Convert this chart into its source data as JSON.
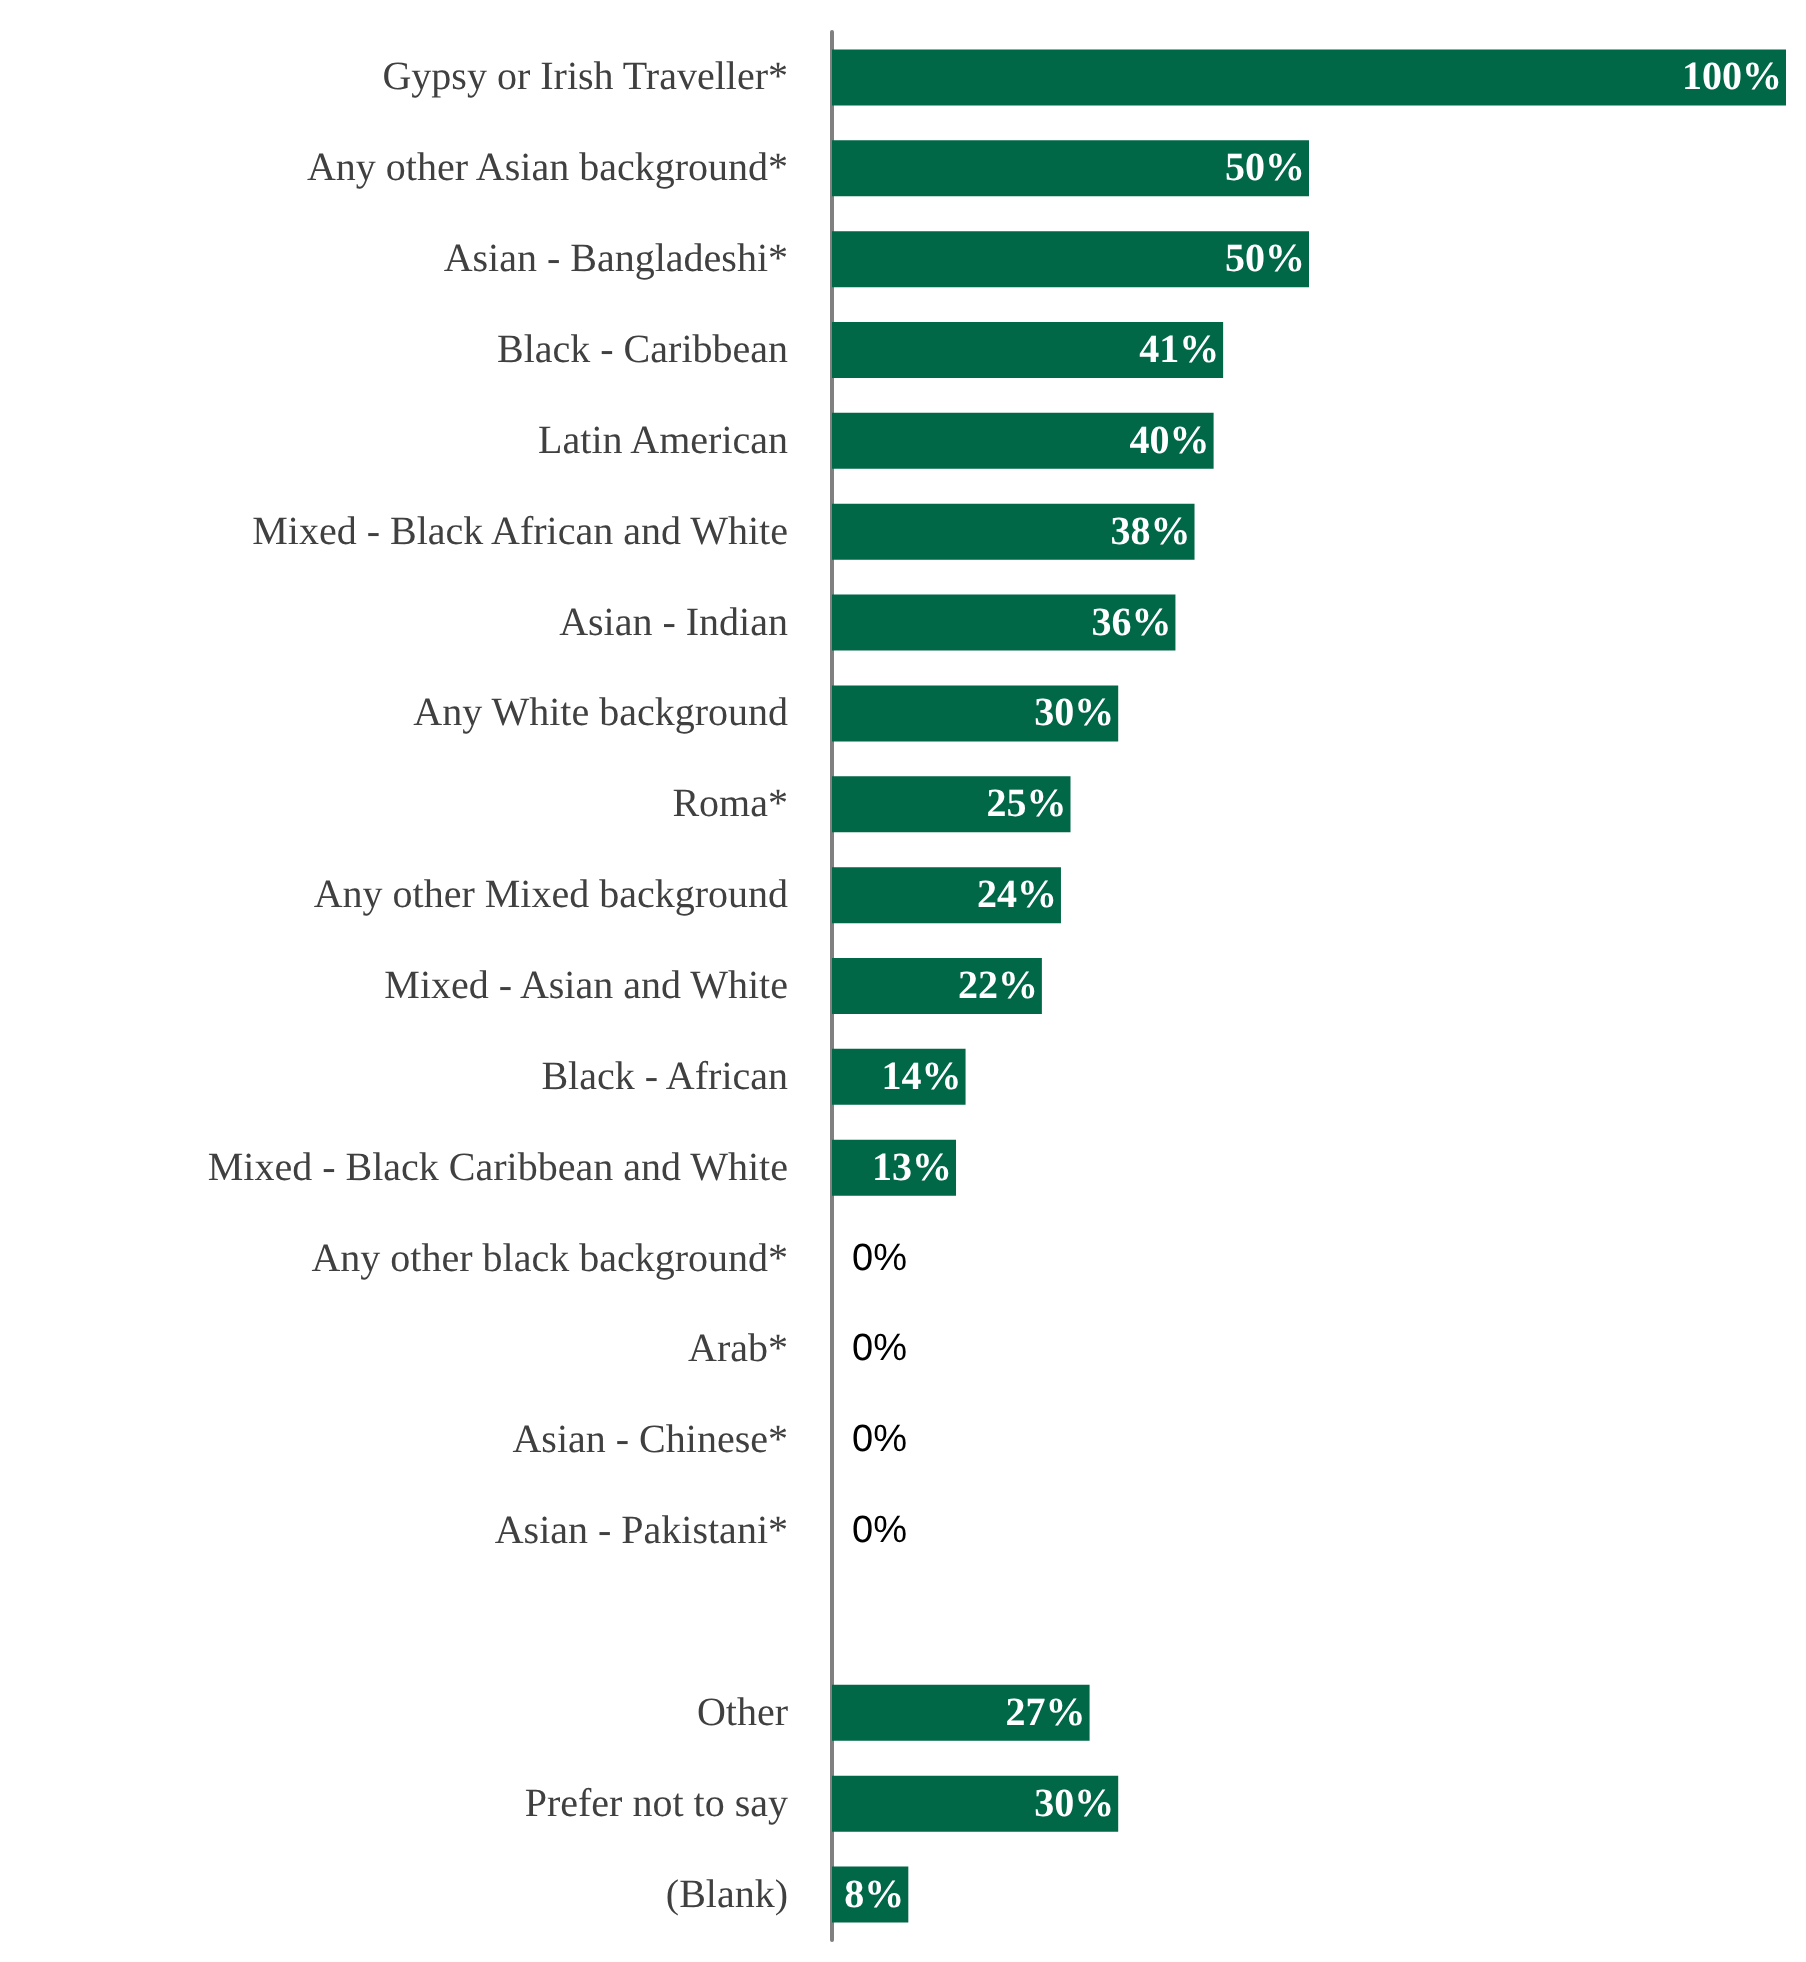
{
  "chart_data": {
    "type": "bar",
    "orientation": "horizontal",
    "categories": [
      "Gypsy or Irish Traveller*",
      "Any other Asian background*",
      "Asian - Bangladeshi*",
      "Black - Caribbean",
      "Latin American",
      "Mixed - Black African and White",
      "Asian - Indian",
      "Any White background",
      "Roma*",
      "Any other Mixed background",
      "Mixed - Asian and White",
      "Black - African",
      "Mixed - Black Caribbean and White",
      "Any other black background*",
      "Arab*",
      "Asian - Chinese*",
      "Asian - Pakistani*",
      null,
      "Other",
      "Prefer not to say",
      "(Blank)"
    ],
    "values": [
      100,
      50,
      50,
      41,
      40,
      38,
      36,
      30,
      25,
      24,
      22,
      14,
      13,
      0,
      0,
      0,
      0,
      null,
      27,
      30,
      8
    ],
    "value_labels": [
      "100%",
      "50%",
      "50%",
      "41%",
      "40%",
      "38%",
      "36%",
      "30%",
      "25%",
      "24%",
      "22%",
      "14%",
      "13%",
      "0%",
      "0%",
      "0%",
      "0%",
      null,
      "27%",
      "30%",
      "8%"
    ],
    "color": "#006747",
    "tick_labels": "y"
  }
}
